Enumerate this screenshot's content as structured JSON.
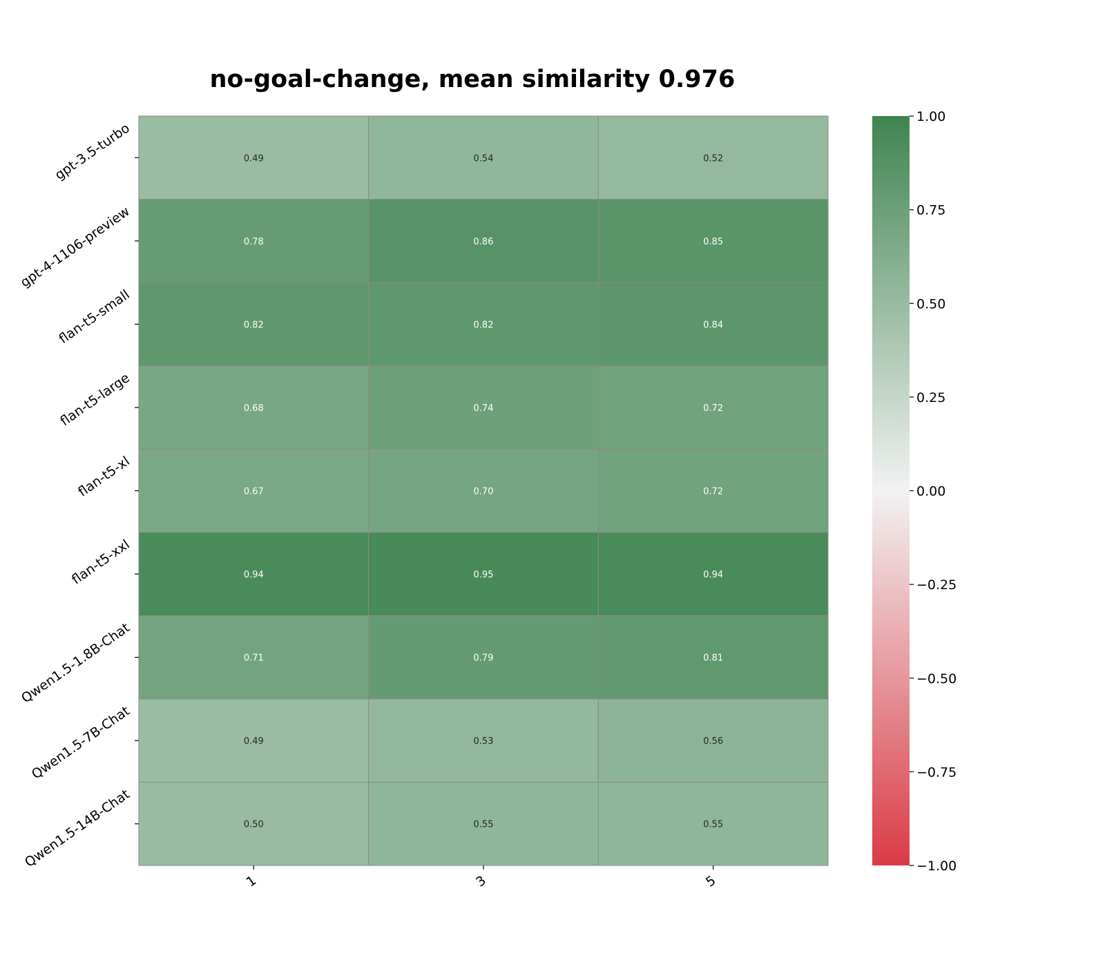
{
  "chart_data": {
    "type": "heatmap",
    "title": "no-goal-change, mean similarity 0.976",
    "xlabel": "",
    "ylabel": "",
    "x_categories": [
      "1",
      "3",
      "5"
    ],
    "y_categories": [
      "gpt-3.5-turbo",
      "gpt-4-1106-preview",
      "flan-t5-small",
      "flan-t5-large",
      "flan-t5-xl",
      "flan-t5-xxl",
      "Qwen1.5-1.8B-Chat",
      "Qwen1.5-7B-Chat",
      "Qwen1.5-14B-Chat"
    ],
    "values": [
      [
        0.49,
        0.54,
        0.52
      ],
      [
        0.78,
        0.86,
        0.85
      ],
      [
        0.82,
        0.82,
        0.84
      ],
      [
        0.68,
        0.74,
        0.72
      ],
      [
        0.67,
        0.7,
        0.72
      ],
      [
        0.94,
        0.95,
        0.94
      ],
      [
        0.71,
        0.79,
        0.81
      ],
      [
        0.49,
        0.53,
        0.56
      ],
      [
        0.5,
        0.55,
        0.55
      ]
    ],
    "value_labels": [
      [
        "0.49",
        "0.54",
        "0.52"
      ],
      [
        "0.78",
        "0.86",
        "0.85"
      ],
      [
        "0.82",
        "0.82",
        "0.84"
      ],
      [
        "0.68",
        "0.74",
        "0.72"
      ],
      [
        "0.67",
        "0.70",
        "0.72"
      ],
      [
        "0.94",
        "0.95",
        "0.94"
      ],
      [
        "0.71",
        "0.79",
        "0.81"
      ],
      [
        "0.49",
        "0.53",
        "0.56"
      ],
      [
        "0.50",
        "0.55",
        "0.55"
      ]
    ],
    "colorbar": {
      "range": [
        -1.0,
        1.0
      ],
      "ticks": [
        1.0,
        0.75,
        0.5,
        0.25,
        0.0,
        -0.25,
        -0.5,
        -0.75,
        -1.0
      ],
      "tick_labels": [
        "1.00",
        "0.75",
        "0.50",
        "0.25",
        "0.00",
        "−0.25",
        "−0.50",
        "−0.75",
        "−1.00"
      ]
    },
    "colormap": {
      "low": "#da3b46",
      "mid": "#f2f2f2",
      "high": "#3f8450"
    },
    "grid": true,
    "legend": "colorbar-right"
  }
}
